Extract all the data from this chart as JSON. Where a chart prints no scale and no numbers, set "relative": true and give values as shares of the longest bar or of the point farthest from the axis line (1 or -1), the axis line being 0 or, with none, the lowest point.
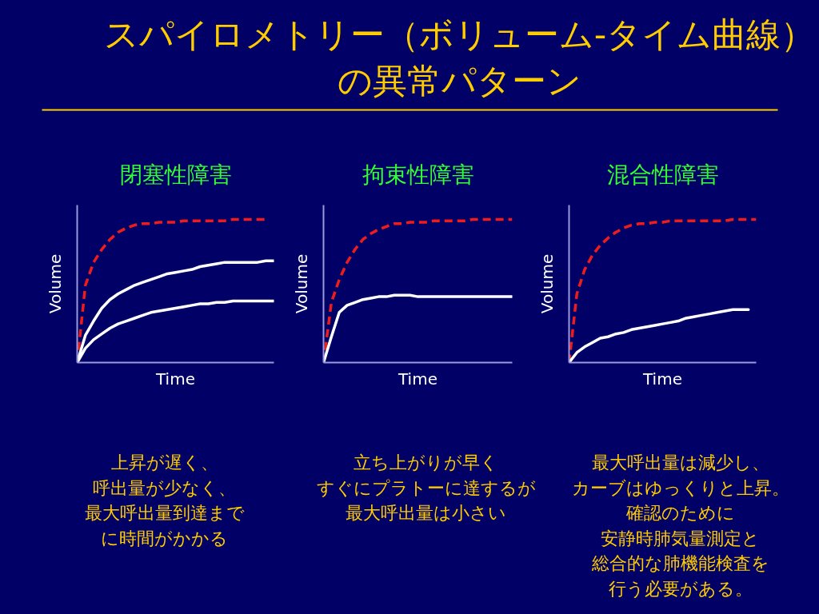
{
  "chart_data": [
    {
      "type": "other",
      "title": "スパイロメトリー（ボリューム-タイム曲線）の異常パターン"
    },
    {
      "type": "line",
      "relative": true,
      "title": "閉塞性障害",
      "xlabel": "Time",
      "ylabel": "Volume",
      "categories": [
        null,
        null,
        null,
        null,
        null,
        null,
        null,
        null,
        null,
        null,
        null,
        null,
        null,
        null,
        null,
        null,
        null,
        null,
        null,
        null,
        null,
        null,
        null,
        null,
        null
      ],
      "series": [
        {
          "color": "#ee1c1c",
          "line_style": "dashed",
          "values": [
            0,
            0.54,
            0.7,
            0.79,
            0.86,
            0.91,
            0.94,
            0.96,
            0.97,
            0.97,
            0.98,
            0.98,
            0.98,
            0.99,
            0.99,
            0.99,
            0.99,
            0.99,
            0.99,
            1.0,
            1.0,
            1.0,
            1.0,
            1.0,
            null
          ]
        },
        {
          "color": "#ffffff",
          "line_style": "solid",
          "values": [
            0,
            0.19,
            0.29,
            0.38,
            0.44,
            0.48,
            0.51,
            0.54,
            0.56,
            0.58,
            0.6,
            0.62,
            0.63,
            0.64,
            0.65,
            0.67,
            0.68,
            0.69,
            0.7,
            0.7,
            0.7,
            0.7,
            0.7,
            0.71,
            0.71
          ]
        },
        {
          "color": "#ffffff",
          "line_style": "solid",
          "values": [
            0,
            0.1,
            0.16,
            0.2,
            0.24,
            0.27,
            0.29,
            0.31,
            0.33,
            0.35,
            0.36,
            0.37,
            0.38,
            0.39,
            0.4,
            0.41,
            0.41,
            0.42,
            0.42,
            0.43,
            0.43,
            0.43,
            0.43,
            0.43,
            0.43
          ]
        }
      ],
      "annotations": [
        "上昇が遅く、",
        "呼出量が少なく、",
        "最大呼出量到達まで",
        "に時間がかかる"
      ]
    },
    {
      "type": "line",
      "relative": true,
      "title": "拘束性障害",
      "xlabel": "Time",
      "ylabel": "Volume",
      "categories": [
        null,
        null,
        null,
        null,
        null,
        null,
        null,
        null,
        null,
        null,
        null,
        null,
        null,
        null,
        null,
        null,
        null,
        null,
        null,
        null,
        null,
        null,
        null,
        null,
        null
      ],
      "series": [
        {
          "color": "#ee1c1c",
          "line_style": "dashed",
          "values": [
            0,
            0.42,
            0.58,
            0.7,
            0.79,
            0.86,
            0.9,
            0.93,
            0.95,
            0.97,
            0.97,
            0.98,
            0.98,
            0.98,
            0.99,
            0.99,
            0.99,
            0.99,
            0.99,
            1.0,
            1.0,
            1.0,
            1.0,
            1.0,
            1.0
          ]
        },
        {
          "color": "#ffffff",
          "line_style": "solid",
          "values": [
            0,
            0.18,
            0.35,
            0.4,
            0.42,
            0.44,
            0.45,
            0.46,
            0.46,
            0.47,
            0.47,
            0.47,
            0.46,
            0.46,
            0.46,
            0.46,
            0.46,
            0.46,
            0.46,
            0.46,
            0.46,
            0.46,
            0.46,
            0.46,
            0.46
          ]
        }
      ],
      "annotations": [
        "立ち上がりが早く",
        "すぐにプラトーに達するが",
        "最大呼出量は小さい"
      ]
    },
    {
      "type": "line",
      "relative": true,
      "title": "混合性障害",
      "xlabel": "Time",
      "ylabel": "Volume",
      "categories": [
        null,
        null,
        null,
        null,
        null,
        null,
        null,
        null,
        null,
        null,
        null,
        null,
        null,
        null,
        null,
        null,
        null,
        null,
        null,
        null,
        null,
        null,
        null,
        null,
        null
      ],
      "series": [
        {
          "color": "#ee1c1c",
          "line_style": "dashed",
          "values": [
            0,
            0.48,
            0.65,
            0.75,
            0.82,
            0.87,
            0.91,
            0.94,
            0.96,
            0.97,
            0.97,
            0.98,
            0.98,
            0.99,
            0.99,
            0.99,
            0.99,
            0.99,
            0.99,
            0.99,
            0.99,
            1.0,
            1.0,
            1.0,
            1.0
          ]
        },
        {
          "color": "#ffffff",
          "line_style": "solid",
          "values": [
            0,
            0.07,
            0.11,
            0.14,
            0.17,
            0.18,
            0.2,
            0.21,
            0.23,
            0.24,
            0.25,
            0.26,
            0.27,
            0.28,
            0.29,
            0.31,
            0.32,
            0.33,
            0.34,
            0.35,
            0.36,
            0.37,
            0.37,
            0.37,
            null
          ]
        }
      ],
      "annotations": [
        "最大呼出量は減少し、",
        "カーブはゆっくりと上昇。",
        "確認のために",
        "安静時肺気量測定と",
        "総合的な肺機能検査を",
        "行う必要がある。"
      ]
    }
  ]
}
